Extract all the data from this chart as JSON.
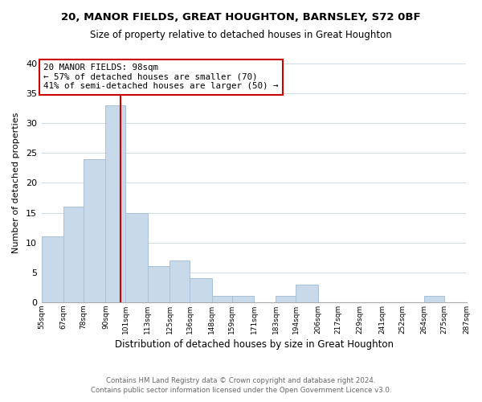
{
  "title": "20, MANOR FIELDS, GREAT HOUGHTON, BARNSLEY, S72 0BF",
  "subtitle": "Size of property relative to detached houses in Great Houghton",
  "xlabel": "Distribution of detached houses by size in Great Houghton",
  "ylabel": "Number of detached properties",
  "bar_color": "#c8daea",
  "bar_edge_color": "#a8c0d6",
  "vline_x": 98,
  "vline_color": "#cc0000",
  "annotation_title": "20 MANOR FIELDS: 98sqm",
  "annotation_line1": "← 57% of detached houses are smaller (70)",
  "annotation_line2": "41% of semi-detached houses are larger (50) →",
  "annotation_box_color": "white",
  "annotation_box_edge": "#cc0000",
  "bins": [
    55,
    67,
    78,
    90,
    101,
    113,
    125,
    136,
    148,
    159,
    171,
    183,
    194,
    206,
    217,
    229,
    241,
    252,
    264,
    275,
    287
  ],
  "counts": [
    11,
    16,
    24,
    33,
    15,
    6,
    7,
    4,
    1,
    1,
    0,
    1,
    3,
    0,
    0,
    0,
    0,
    0,
    1,
    0
  ],
  "ylim": [
    0,
    40
  ],
  "yticks": [
    0,
    5,
    10,
    15,
    20,
    25,
    30,
    35,
    40
  ],
  "tick_labels": [
    "55sqm",
    "67sqm",
    "78sqm",
    "90sqm",
    "101sqm",
    "113sqm",
    "125sqm",
    "136sqm",
    "148sqm",
    "159sqm",
    "171sqm",
    "183sqm",
    "194sqm",
    "206sqm",
    "217sqm",
    "229sqm",
    "241sqm",
    "252sqm",
    "264sqm",
    "275sqm",
    "287sqm"
  ],
  "footer1": "Contains HM Land Registry data © Crown copyright and database right 2024.",
  "footer2": "Contains public sector information licensed under the Open Government Licence v3.0.",
  "background_color": "#ffffff",
  "plot_bg_color": "#ffffff",
  "grid_color": "#d0dce8"
}
